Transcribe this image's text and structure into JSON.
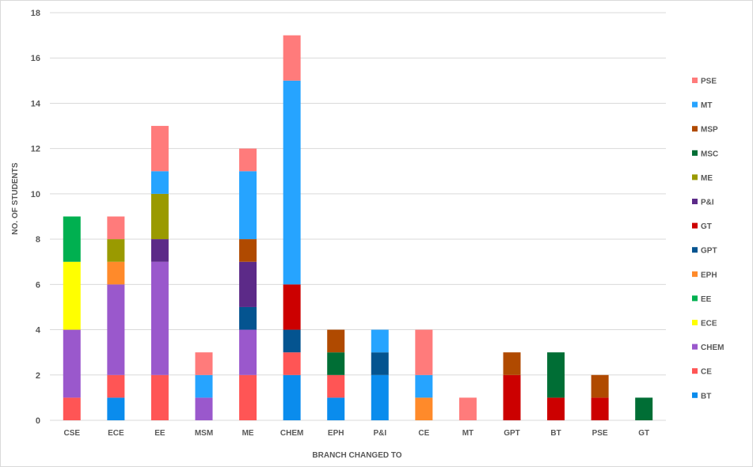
{
  "chart_data": {
    "type": "bar",
    "stacked": true,
    "title": "",
    "xlabel": "BRANCH CHANGED TO",
    "ylabel": "NO. OF STUDENTS",
    "ylim": [
      0,
      18
    ],
    "yticks": [
      0,
      2,
      4,
      6,
      8,
      10,
      12,
      14,
      16,
      18
    ],
    "grid": true,
    "legend_position": "right",
    "categories": [
      "CSE",
      "ECE",
      "EE",
      "MSM",
      "ME",
      "CHEM",
      "EPH",
      "P&I",
      "CE",
      "MT",
      "GPT",
      "BT",
      "PSE",
      "GT"
    ],
    "series": [
      {
        "name": "BT",
        "color": "#0a8ced",
        "values": [
          0,
          1,
          0,
          0,
          0,
          2,
          1,
          2,
          0,
          0,
          0,
          0,
          0,
          0
        ]
      },
      {
        "name": "CE",
        "color": "#ff5555",
        "values": [
          1,
          1,
          2,
          0,
          2,
          1,
          1,
          0,
          0,
          0,
          0,
          0,
          0,
          0
        ]
      },
      {
        "name": "CHEM",
        "color": "#9a58cc",
        "values": [
          3,
          4,
          5,
          1,
          2,
          0,
          0,
          0,
          0,
          0,
          0,
          0,
          0,
          0
        ]
      },
      {
        "name": "ECE",
        "color": "#ffff00",
        "values": [
          3,
          0,
          0,
          0,
          0,
          0,
          0,
          0,
          0,
          0,
          0,
          0,
          0,
          0
        ]
      },
      {
        "name": "EE",
        "color": "#00b050",
        "values": [
          2,
          0,
          0,
          0,
          0,
          0,
          0,
          0,
          0,
          0,
          0,
          0,
          0,
          0
        ]
      },
      {
        "name": "EPH",
        "color": "#ff8a2a",
        "values": [
          0,
          1,
          0,
          0,
          0,
          0,
          0,
          0,
          1,
          0,
          0,
          0,
          0,
          0
        ]
      },
      {
        "name": "GPT",
        "color": "#045490",
        "values": [
          0,
          0,
          0,
          0,
          1,
          1,
          0,
          1,
          0,
          0,
          0,
          0,
          0,
          0
        ]
      },
      {
        "name": "GT",
        "color": "#cc0000",
        "values": [
          0,
          0,
          0,
          0,
          0,
          2,
          0,
          0,
          0,
          0,
          2,
          1,
          1,
          0
        ]
      },
      {
        "name": "P&I",
        "color": "#5c2a88",
        "values": [
          0,
          0,
          1,
          0,
          2,
          0,
          0,
          0,
          0,
          0,
          0,
          0,
          0,
          0
        ]
      },
      {
        "name": "ME",
        "color": "#9a9a00",
        "values": [
          0,
          1,
          2,
          0,
          0,
          0,
          0,
          0,
          0,
          0,
          0,
          0,
          0,
          0
        ]
      },
      {
        "name": "MSC",
        "color": "#006e35",
        "values": [
          0,
          0,
          0,
          0,
          0,
          0,
          1,
          0,
          0,
          0,
          0,
          2,
          0,
          1
        ]
      },
      {
        "name": "MSP",
        "color": "#b04a00",
        "values": [
          0,
          0,
          0,
          0,
          1,
          0,
          1,
          0,
          0,
          0,
          1,
          0,
          1,
          0
        ]
      },
      {
        "name": "MT",
        "color": "#26a4ff",
        "values": [
          0,
          0,
          1,
          1,
          3,
          9,
          0,
          1,
          1,
          0,
          0,
          0,
          0,
          0
        ]
      },
      {
        "name": "PSE",
        "color": "#ff7b7b",
        "values": [
          0,
          1,
          2,
          1,
          1,
          2,
          0,
          0,
          2,
          1,
          0,
          0,
          0,
          0
        ]
      }
    ]
  }
}
